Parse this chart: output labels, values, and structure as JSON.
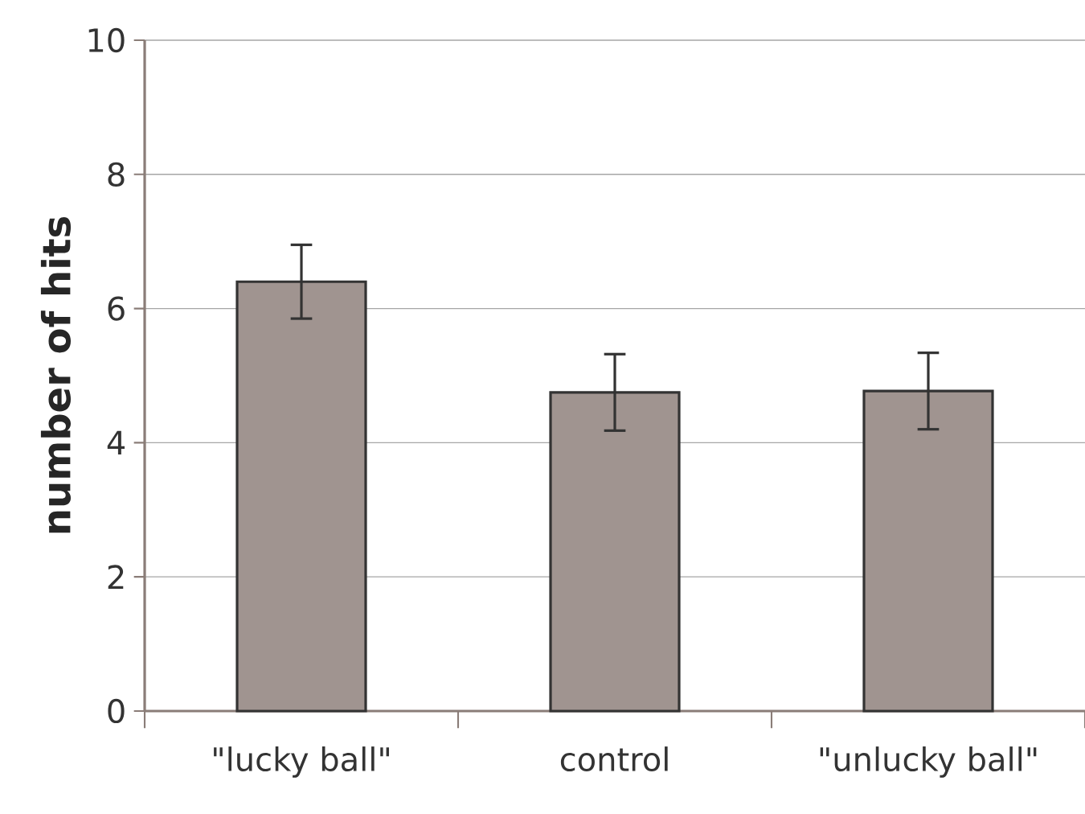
{
  "chart_data": {
    "type": "bar",
    "ylabel": "number of hits",
    "categories": [
      "\"lucky ball\"",
      "control",
      "\"unlucky ball\""
    ],
    "values": [
      6.4,
      4.75,
      4.77
    ],
    "errors": [
      0.55,
      0.57,
      0.57
    ],
    "color": "#a09490",
    "ylim": [
      0,
      10
    ],
    "yticks": [
      0,
      2,
      4,
      6,
      8,
      10
    ],
    "grid": "y"
  }
}
